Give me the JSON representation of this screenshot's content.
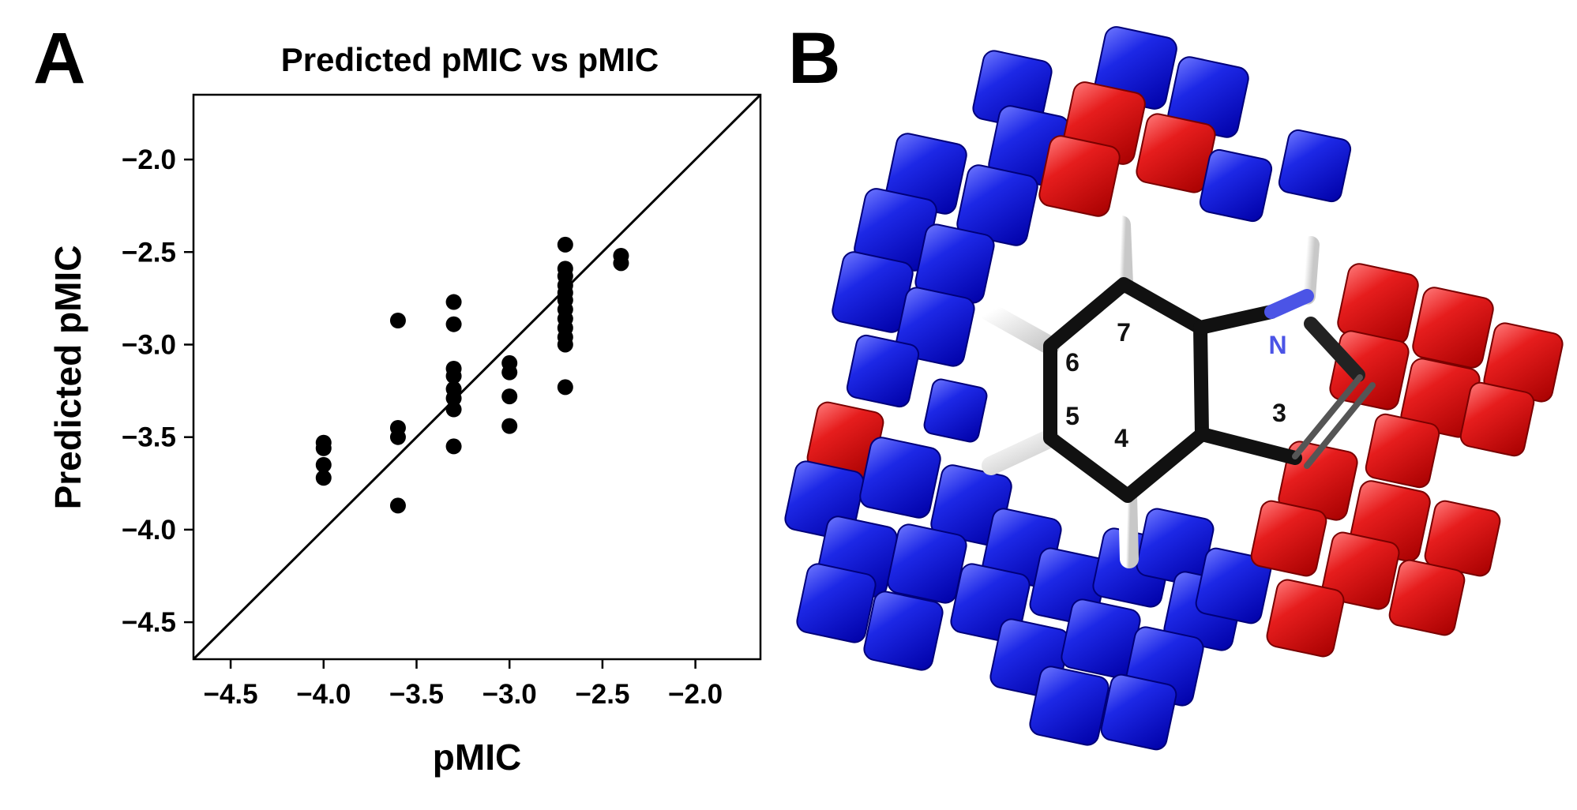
{
  "panels": {
    "a_label": "A",
    "b_label": "B"
  },
  "chart_data": {
    "type": "scatter",
    "title": "Predicted pMIC vs pMIC",
    "xlabel": "pMIC",
    "ylabel": "Predicted pMIC",
    "xlim": [
      -4.7,
      -1.65
    ],
    "ylim": [
      -4.7,
      -1.65
    ],
    "xticks": [
      "−4.5",
      "−4.0",
      "−3.5",
      "−3.0",
      "−2.5",
      "−2.0"
    ],
    "yticks": [
      "−2.0",
      "−2.5",
      "−3.0",
      "−3.5",
      "−4.0",
      "−4.5"
    ],
    "tick_values": [
      -4.5,
      -4.0,
      -3.5,
      -3.0,
      -2.5,
      -2.0
    ],
    "diagonal": true,
    "grid": false,
    "point_color": "#000000",
    "points": [
      [
        -4.0,
        -3.53
      ],
      [
        -4.0,
        -3.56
      ],
      [
        -4.0,
        -3.65
      ],
      [
        -4.0,
        -3.72
      ],
      [
        -3.6,
        -2.87
      ],
      [
        -3.6,
        -3.45
      ],
      [
        -3.6,
        -3.5
      ],
      [
        -3.6,
        -3.87
      ],
      [
        -3.3,
        -2.77
      ],
      [
        -3.3,
        -2.89
      ],
      [
        -3.3,
        -3.13
      ],
      [
        -3.3,
        -3.17
      ],
      [
        -3.3,
        -3.24
      ],
      [
        -3.3,
        -3.29
      ],
      [
        -3.3,
        -3.35
      ],
      [
        -3.3,
        -3.55
      ],
      [
        -3.0,
        -3.1
      ],
      [
        -3.0,
        -3.15
      ],
      [
        -3.0,
        -3.28
      ],
      [
        -3.0,
        -3.44
      ],
      [
        -2.7,
        -2.46
      ],
      [
        -2.7,
        -2.59
      ],
      [
        -2.7,
        -2.63
      ],
      [
        -2.7,
        -2.68
      ],
      [
        -2.7,
        -2.72
      ],
      [
        -2.7,
        -2.76
      ],
      [
        -2.7,
        -2.81
      ],
      [
        -2.7,
        -2.86
      ],
      [
        -2.7,
        -2.91
      ],
      [
        -2.7,
        -2.96
      ],
      [
        -2.7,
        -3.0
      ],
      [
        -2.7,
        -3.23
      ],
      [
        -2.4,
        -2.52
      ],
      [
        -2.4,
        -2.56
      ]
    ]
  },
  "molecule": {
    "labels": {
      "n": "N",
      "c3": "3",
      "c4": "4",
      "c5": "5",
      "c6": "6",
      "c7": "7"
    },
    "colors": {
      "blue": "#0a14d6",
      "red": "#d60a0a",
      "bond": "#111111",
      "nitrogen": "#4b54e6",
      "hydrogen": "#f2f2f2"
    }
  }
}
